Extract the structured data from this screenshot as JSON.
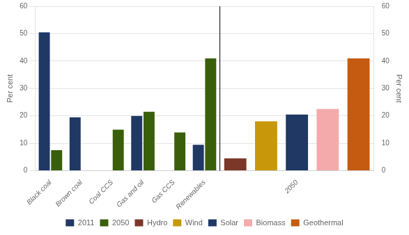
{
  "chart_data": {
    "type": "bar",
    "categories": [
      "Black coal",
      "Brown coal",
      "Coal CCS",
      "Gas and oil",
      "Gas CCS",
      "Renewables",
      null,
      null,
      "2050",
      null,
      null
    ],
    "series": [
      {
        "name": "2011",
        "color": "#1F3864",
        "values": [
          50.5,
          19.5,
          0,
          20,
          0,
          9.5,
          null,
          null,
          null,
          null,
          null
        ]
      },
      {
        "name": "2050",
        "color": "#3A5F0B",
        "values": [
          7.5,
          0,
          15,
          21.5,
          14,
          41,
          null,
          null,
          null,
          null,
          null
        ]
      },
      {
        "name": "Hydro",
        "color": "#7B3728",
        "values": [
          null,
          null,
          null,
          null,
          null,
          null,
          4.5,
          null,
          null,
          null,
          null
        ]
      },
      {
        "name": "Wind",
        "color": "#C8980A",
        "values": [
          null,
          null,
          null,
          null,
          null,
          null,
          null,
          18.0,
          null,
          null,
          null
        ]
      },
      {
        "name": "Solar",
        "color": "#1F3864",
        "values": [
          null,
          null,
          null,
          null,
          null,
          null,
          null,
          null,
          20.5,
          null,
          null
        ]
      },
      {
        "name": "Biomass",
        "color": "#F4AAAA",
        "values": [
          null,
          null,
          null,
          null,
          null,
          null,
          null,
          null,
          null,
          22.5,
          null
        ]
      },
      {
        "name": "Geothermal",
        "color": "#C55A11",
        "values": [
          null,
          null,
          null,
          null,
          null,
          null,
          null,
          null,
          null,
          null,
          41.0
        ]
      }
    ],
    "ylabel": "Per cent",
    "y2label": "Per cent",
    "ylim": [
      0,
      60
    ],
    "yticks": [
      0,
      10,
      20,
      30,
      40,
      50,
      60
    ],
    "y2lim": [
      0,
      60
    ],
    "y2ticks": [
      0,
      10,
      20,
      30,
      40,
      50,
      60
    ],
    "grid": true,
    "legend": "bottom"
  }
}
